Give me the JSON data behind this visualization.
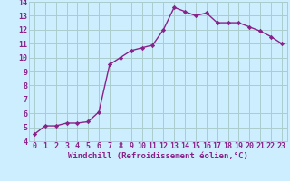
{
  "xlabel": "Windchill (Refroidissement éolien,°C)",
  "x": [
    0,
    1,
    2,
    3,
    4,
    5,
    6,
    7,
    8,
    9,
    10,
    11,
    12,
    13,
    14,
    15,
    16,
    17,
    18,
    19,
    20,
    21,
    22,
    23
  ],
  "y": [
    4.5,
    5.1,
    5.1,
    5.3,
    5.3,
    5.4,
    6.1,
    9.5,
    10.0,
    10.5,
    10.7,
    10.9,
    12.0,
    13.6,
    13.3,
    13.0,
    13.2,
    12.5,
    12.5,
    12.5,
    12.2,
    11.9,
    11.5,
    11.0
  ],
  "line_color": "#882288",
  "marker": "D",
  "marker_size": 2.2,
  "bg_color": "#cceeff",
  "grid_color": "#aacccc",
  "tick_color": "#882288",
  "label_color": "#882288",
  "ylim": [
    4,
    14
  ],
  "yticks": [
    4,
    5,
    6,
    7,
    8,
    9,
    10,
    11,
    12,
    13,
    14
  ],
  "xlim": [
    -0.5,
    23.5
  ],
  "xticks": [
    0,
    1,
    2,
    3,
    4,
    5,
    6,
    7,
    8,
    9,
    10,
    11,
    12,
    13,
    14,
    15,
    16,
    17,
    18,
    19,
    20,
    21,
    22,
    23
  ],
  "xlabel_fontsize": 6.5,
  "tick_fontsize": 6.0,
  "line_width": 1.0
}
